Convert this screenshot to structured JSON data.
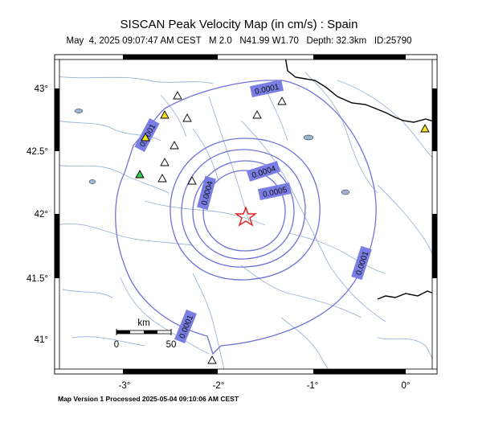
{
  "map": {
    "title": "SISCAN Peak Velocity Map (in cm/s) : Spain",
    "subtitle": "May  4, 2025 09:07:47 AM CEST   M 2.0   N41.99 W1.70   Depth: 32.3km   ID:25790",
    "footer": "Map Version 1 Processed 2025-05-04 09:10:06 AM CEST",
    "lat_ticks": [
      "43°",
      "42.5°",
      "42°",
      "41.5°",
      "41°"
    ],
    "lon_ticks": [
      "-3°",
      "-2°",
      "-1°",
      "0°"
    ],
    "scale_bar": {
      "unit": "km",
      "min_label": "0",
      "max_label": "50"
    },
    "contour_labels": [
      "0.0001",
      "0.0001",
      "0.0004",
      "0.0005",
      "0.0004",
      "0.0001",
      "0.0001"
    ],
    "epicenter": {
      "lat": 41.99,
      "lon": -1.7
    },
    "colors": {
      "contour": "#6f72d9",
      "label_bg": "#7a7de3",
      "river": "#9db5d3",
      "border": "#000000",
      "epicenter": "#e0221f",
      "station_green": "#35c84a",
      "station_yellow": "#f2e21f"
    }
  }
}
